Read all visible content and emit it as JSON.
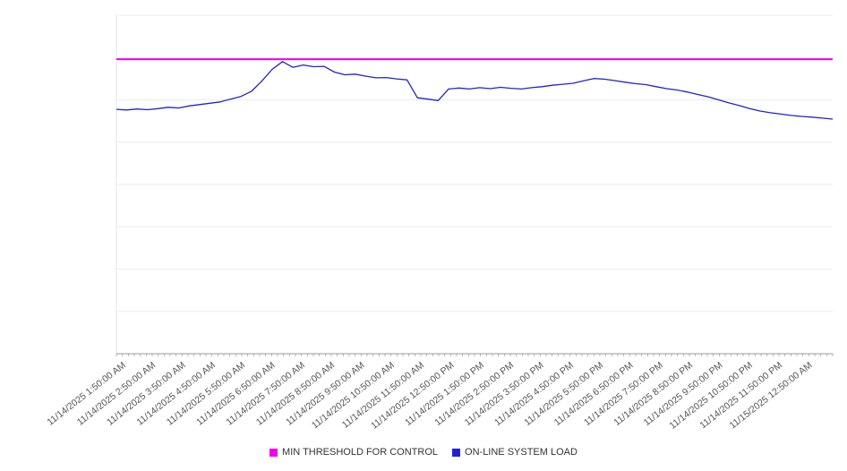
{
  "chart_data": {
    "type": "line",
    "title": "",
    "grid": "horizontal",
    "legend_position": "bottom",
    "ylim": [
      0,
      100
    ],
    "y_ticks_visible": false,
    "value_scale_note": "y-axis unlabeled in source; values estimated as percent of plot height",
    "x_ticks": [
      "11/14/2025 1:50:00 AM",
      "11/14/2025 2:50:00 AM",
      "11/14/2025 3:50:00 AM",
      "11/14/2025 4:50:00 AM",
      "11/14/2025 5:50:00 AM",
      "11/14/2025 6:50:00 AM",
      "11/14/2025 7:50:00 AM",
      "11/14/2025 8:50:00 AM",
      "11/14/2025 9:50:00 AM",
      "11/14/2025 10:50:00 AM",
      "11/14/2025 11:50:00 AM",
      "11/14/2025 12:50:00 PM",
      "11/14/2025 1:50:00 PM",
      "11/14/2025 2:50:00 PM",
      "11/14/2025 3:50:00 PM",
      "11/14/2025 4:50:00 PM",
      "11/14/2025 5:50:00 PM",
      "11/14/2025 6:50:00 PM",
      "11/14/2025 7:50:00 PM",
      "11/14/2025 8:50:00 PM",
      "11/14/2025 9:50:00 PM",
      "11/14/2025 10:50:00 PM",
      "11/14/2025 11:50:00 PM",
      "11/15/2025 12:50:00 AM"
    ],
    "series": [
      {
        "name": "MIN THRESHOLD FOR CONTROL",
        "type": "constant",
        "value": 87,
        "color": "#ee00ee"
      },
      {
        "name": "ON-LINE SYSTEM LOAD",
        "type": "line",
        "color": "#2222cc",
        "start_time": "11/14/2025 1:50:00 AM",
        "points_interval_minutes": 20,
        "values": [
          72.2,
          72.0,
          72.3,
          72.1,
          72.4,
          72.8,
          72.6,
          73.2,
          73.6,
          74.0,
          74.4,
          75.2,
          76.0,
          77.5,
          80.5,
          84.0,
          86.3,
          84.6,
          85.3,
          84.8,
          84.9,
          83.2,
          82.4,
          82.6,
          82.0,
          81.5,
          81.6,
          81.2,
          80.9,
          75.6,
          75.2,
          74.8,
          78.2,
          78.5,
          78.2,
          78.6,
          78.3,
          78.7,
          78.4,
          78.2,
          78.6,
          78.9,
          79.3,
          79.6,
          79.9,
          80.6,
          81.3,
          81.1,
          80.7,
          80.2,
          79.8,
          79.5,
          78.9,
          78.3,
          77.9,
          77.3,
          76.6,
          75.9,
          75.0,
          74.1,
          73.3,
          72.4,
          71.7,
          71.2,
          70.8,
          70.4,
          70.1,
          69.9,
          69.6,
          69.3
        ]
      }
    ]
  }
}
